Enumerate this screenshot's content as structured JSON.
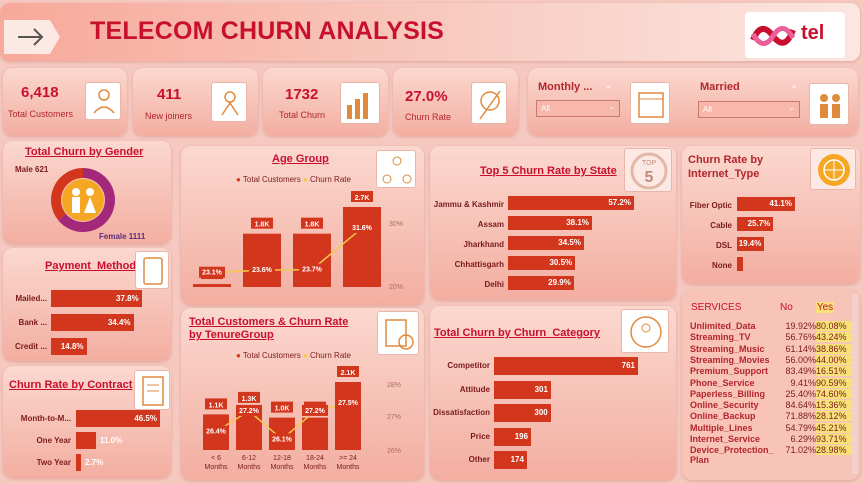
{
  "header": {
    "title": "TELECOM CHURN ANALYSIS",
    "logo": "tel",
    "accent": "#c8102e"
  },
  "kpis": [
    {
      "value": "6,418",
      "label": "Total Customers",
      "icon": "customers-icon"
    },
    {
      "value": "411",
      "label": "New joiners",
      "icon": "new-joiner-icon"
    },
    {
      "value": "1732",
      "label": "Total Churn",
      "icon": "churn-chart-icon"
    },
    {
      "value": "27.0%",
      "label": "Churn Rate",
      "icon": "churn-rate-icon"
    }
  ],
  "filters": {
    "frequency": {
      "label": "Monthly ...",
      "value": "All"
    },
    "married": {
      "label": "Married",
      "value": "All"
    }
  },
  "gender": {
    "title": "Total Churn by Gender",
    "male_label": "Male 621",
    "female_label": "Female 1111",
    "male": 621,
    "female": 1111
  },
  "payment": {
    "title": "Payment_Method",
    "items": [
      {
        "label": "Mailed...",
        "value": 37.8,
        "text": "37.8%"
      },
      {
        "label": "Bank ...",
        "value": 34.4,
        "text": "34.4%"
      },
      {
        "label": "Credit ...",
        "value": 14.8,
        "text": "14.8%"
      }
    ]
  },
  "contract": {
    "title": "Churn Rate by Contract",
    "items": [
      {
        "label": "Month-to-M...",
        "value": 46.5,
        "text": "46.5%"
      },
      {
        "label": "One Year",
        "value": 11.0,
        "text": "11.0%"
      },
      {
        "label": "Two Year",
        "value": 2.7,
        "text": "2.7%"
      }
    ]
  },
  "age": {
    "title": "Age Group",
    "legend_a": "Total Customers",
    "legend_b": "Churn Rate",
    "axis": [
      "30%",
      "20%"
    ],
    "bars": [
      {
        "v": 0.1,
        "t": "0.1K"
      },
      {
        "v": 1.8,
        "t": "1.8K"
      },
      {
        "v": 1.8,
        "t": "1.8K"
      },
      {
        "v": 2.7,
        "t": "2.7K"
      }
    ],
    "rates": [
      {
        "v": 23.1,
        "t": "23.1%"
      },
      {
        "v": 23.6,
        "t": "23.6%"
      },
      {
        "v": 23.7,
        "t": "23.7%"
      },
      {
        "v": 31.6,
        "t": "31.6%"
      }
    ]
  },
  "tenure": {
    "title": "Total Customers & Churn Rate by TenureGroup",
    "legend_a": "Total Customers",
    "legend_b": "Churn Rate",
    "axis": [
      "28%",
      "27%",
      "26%"
    ],
    "categories": [
      "< 6 Months",
      "6-12 Months",
      "12-18 Months",
      "18-24 Months",
      ">= 24 Months"
    ],
    "bars": [
      {
        "v": 1.1,
        "t": "1.1K"
      },
      {
        "v": 1.3,
        "t": "1.3K"
      },
      {
        "v": 1.0,
        "t": "1.0K"
      },
      {
        "v": 1.0,
        "t": "1.0K"
      },
      {
        "v": 2.1,
        "t": "2.1K"
      }
    ],
    "rates": [
      {
        "v": 26.4,
        "t": "26.4%"
      },
      {
        "v": 27.2,
        "t": "27.2%"
      },
      {
        "v": 26.1,
        "t": "26.1%"
      },
      {
        "v": 27.2,
        "t": "27.2%"
      },
      {
        "v": 27.5,
        "t": "27.5%"
      }
    ]
  },
  "states": {
    "title": "Top 5 Churn Rate by State",
    "icon": "top-5-icon",
    "items": [
      {
        "label": "Jammu & Kashmir",
        "value": 57.2,
        "text": "57.2%"
      },
      {
        "label": "Assam",
        "value": 38.1,
        "text": "38.1%"
      },
      {
        "label": "Jharkhand",
        "value": 34.5,
        "text": "34.5%"
      },
      {
        "label": "Chhattisgarh",
        "value": 30.5,
        "text": "30.5%"
      },
      {
        "label": "Delhi",
        "value": 29.9,
        "text": "29.9%"
      }
    ]
  },
  "category": {
    "title": "Total Churn by Churn_Category",
    "items": [
      {
        "label": "Competitor",
        "value": 761,
        "text": "761"
      },
      {
        "label": "Attitude",
        "value": 301,
        "text": "301"
      },
      {
        "label": "Dissatisfaction",
        "value": 300,
        "text": "300"
      },
      {
        "label": "Price",
        "value": 196,
        "text": "196"
      },
      {
        "label": "Other",
        "value": 174,
        "text": "174"
      }
    ]
  },
  "internet": {
    "title": "Churn Rate by Internet_Type",
    "items": [
      {
        "label": "Fiber Optic",
        "value": 41.1,
        "text": "41.1%"
      },
      {
        "label": "Cable",
        "value": 25.7,
        "text": "25.7%"
      },
      {
        "label": "DSL",
        "value": 19.4,
        "text": "19.4%"
      },
      {
        "label": "None",
        "value": 4.0,
        "text": ""
      }
    ]
  },
  "services": {
    "col1": "SERVICES",
    "col2": "No",
    "col3": "Yes",
    "rows": [
      {
        "name": "Unlimited_Data",
        "no": "19.92%",
        "yes": "80.08%"
      },
      {
        "name": "Streaming_TV",
        "no": "56.76%",
        "yes": "43.24%"
      },
      {
        "name": "Streaming_Music",
        "no": "61.14%",
        "yes": "38.86%"
      },
      {
        "name": "Streaming_Movies",
        "no": "56.00%",
        "yes": "44.00%"
      },
      {
        "name": "Premium_Support",
        "no": "83.49%",
        "yes": "16.51%"
      },
      {
        "name": "Phone_Service",
        "no": "9.41%",
        "yes": "90.59%"
      },
      {
        "name": "Paperless_Billing",
        "no": "25.40%",
        "yes": "74.60%"
      },
      {
        "name": "Online_Security",
        "no": "84.64%",
        "yes": "15.36%"
      },
      {
        "name": "Online_Backup",
        "no": "71.88%",
        "yes": "28.12%"
      },
      {
        "name": "Multiple_Lines",
        "no": "54.79%",
        "yes": "45.21%"
      },
      {
        "name": "Internet_Service",
        "no": "6.29%",
        "yes": "93.71%"
      },
      {
        "name": "Device_Protection_Plan",
        "no": "71.02%",
        "yes": "28.98%"
      }
    ]
  }
}
